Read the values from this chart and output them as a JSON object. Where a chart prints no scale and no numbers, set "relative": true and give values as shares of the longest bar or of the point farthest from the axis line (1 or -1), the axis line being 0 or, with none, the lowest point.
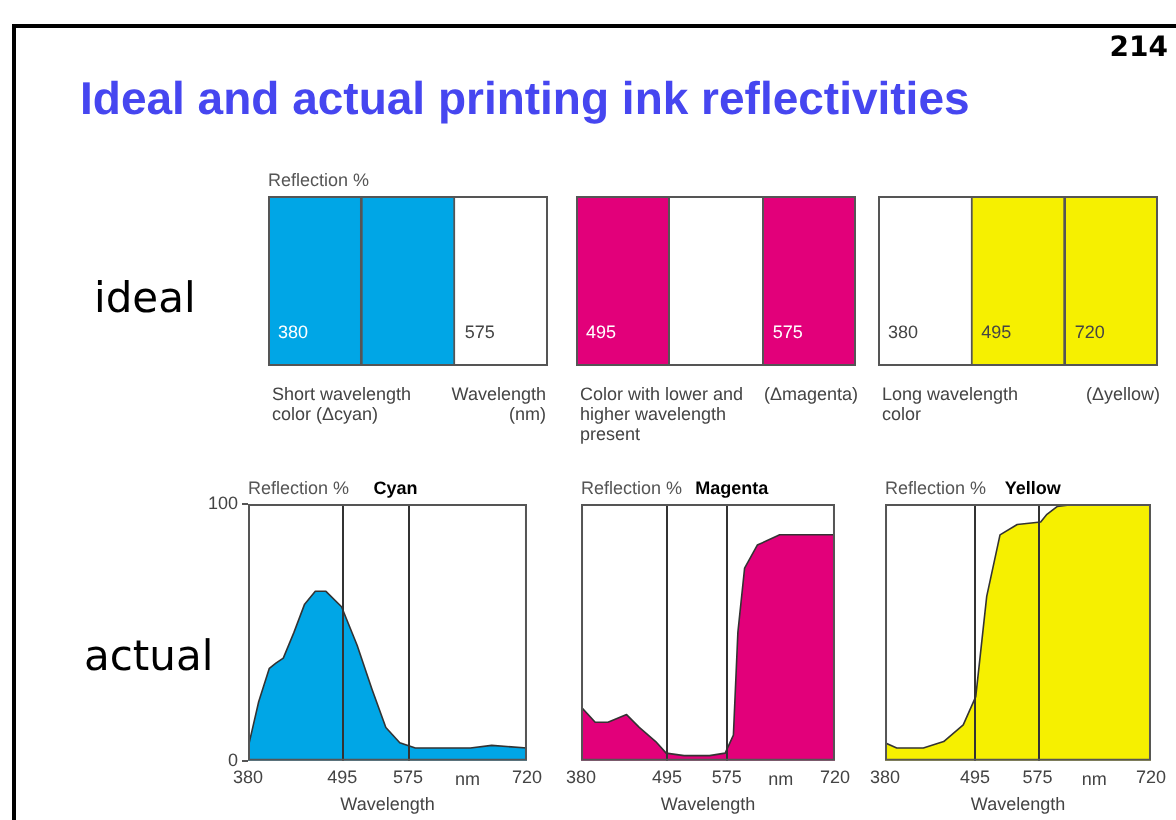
{
  "chart_data": [
    {
      "type": "bar",
      "title": "Ideal and actual printing ink reflectivities",
      "ylabel": "Reflection %",
      "xlabel": "Wavelength (nm)",
      "relative": true,
      "categories": [
        "380",
        null,
        "575"
      ],
      "values": [
        1,
        1,
        0
      ],
      "color": "#00a6e6",
      "annotations": [
        "214",
        "ideal",
        "Short wavelength color (Δcyan)"
      ]
    },
    {
      "type": "bar",
      "relative": true,
      "categories": [
        "495",
        null,
        "575"
      ],
      "values": [
        1,
        0,
        1
      ],
      "color": "#e2007a",
      "annotations": [
        "Color with lower and higher wavelength present",
        "(Δmagenta)"
      ]
    },
    {
      "type": "bar",
      "relative": true,
      "categories": [
        "380",
        "495",
        "720"
      ],
      "values": [
        0,
        1,
        1
      ],
      "color": "#f6f000",
      "annotations": [
        "Long wavelength color",
        "(Δyellow)"
      ]
    },
    {
      "type": "area",
      "title": "Cyan",
      "ylabel": "Reflection %",
      "xlabel": "Wavelength",
      "color": "#00a6e6",
      "x": [
        380,
        393,
        406,
        414,
        423,
        436,
        449,
        462,
        475,
        494,
        513,
        531,
        548,
        565,
        584,
        651,
        677,
        720
      ],
      "values": [
        5,
        23,
        36,
        38,
        40,
        50,
        61,
        66,
        66,
        60,
        45,
        28,
        13,
        7,
        5,
        5,
        6,
        5
      ],
      "xlim": [
        380,
        720
      ],
      "xticks": [
        380,
        495,
        575,
        720
      ],
      "ylim": [
        0,
        100
      ],
      "yticks": [
        0,
        100
      ],
      "ref_lines": [
        {
          "axis": "x",
          "value": 495
        },
        {
          "axis": "x",
          "value": 575
        }
      ],
      "annotations": [
        "actual",
        "nm"
      ]
    },
    {
      "type": "area",
      "title": "Magenta",
      "ylabel": "Reflection %",
      "xlabel": "Wavelength",
      "color": "#e2007a",
      "x": [
        380,
        399,
        416,
        441,
        458,
        480,
        494,
        518,
        552,
        573,
        584,
        590,
        599,
        616,
        646,
        688,
        720
      ],
      "values": [
        21,
        15,
        15,
        18,
        13,
        7.5,
        3,
        2,
        2,
        3,
        10,
        50,
        75,
        84,
        88,
        88,
        88
      ],
      "xlim": [
        380,
        720
      ],
      "xticks": [
        380,
        495,
        575,
        720
      ],
      "ylim": [
        0,
        100
      ],
      "tick_labels": "x",
      "ref_lines": [
        {
          "axis": "x",
          "value": 495
        },
        {
          "axis": "x",
          "value": 575
        }
      ],
      "annotations": [
        "nm"
      ]
    },
    {
      "type": "area",
      "title": "Yellow",
      "ylabel": "Reflection %",
      "xlabel": "Wavelength",
      "color": "#f6f000",
      "x": [
        380,
        395,
        429,
        455,
        480,
        496,
        510,
        527,
        549,
        579,
        587,
        600,
        626,
        720
      ],
      "values": [
        7,
        5,
        5,
        7.5,
        14,
        25,
        64,
        88,
        92,
        93,
        96,
        99,
        100,
        100
      ],
      "xlim": [
        380,
        720
      ],
      "xticks": [
        380,
        495,
        575,
        720
      ],
      "ylim": [
        0,
        100
      ],
      "tick_labels": "x",
      "ref_lines": [
        {
          "axis": "x",
          "value": 495
        },
        {
          "axis": "x",
          "value": 575
        }
      ],
      "annotations": [
        "nm"
      ]
    }
  ]
}
